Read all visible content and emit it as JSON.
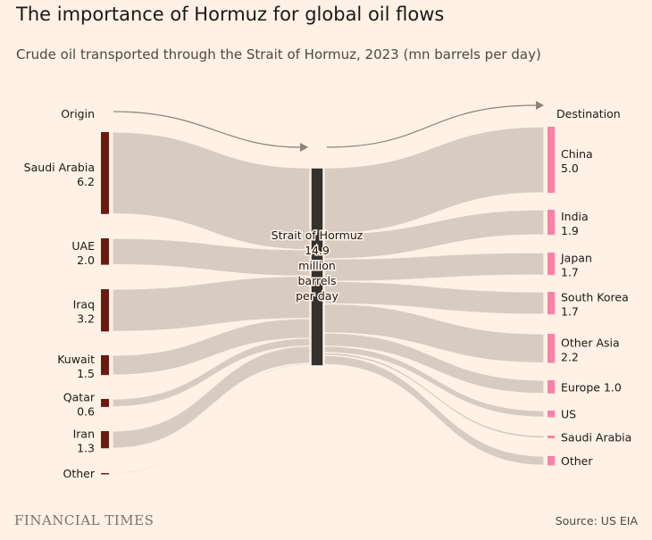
{
  "title": "The importance of Hormuz for global oil flows",
  "subtitle": "Crude oil transported through the Strait of Hormuz, 2023 (mn barrels per day)",
  "brand": "FINANCIAL TIMES",
  "source": "Source: US EIA",
  "chart_data": {
    "type": "sankey",
    "units": "mn barrels per day",
    "origin_label": "Origin",
    "destination_label": "Destination",
    "hub": {
      "name": "Strait of Hormuz",
      "value": 14.9,
      "label_lines": [
        "Strait of Hormuz",
        "14.9",
        "million",
        "barrels",
        "per day"
      ]
    },
    "origins": [
      {
        "name": "Saudi Arabia",
        "value": 6.2,
        "label": "6.2"
      },
      {
        "name": "UAE",
        "value": 2.0,
        "label": "2.0"
      },
      {
        "name": "Iraq",
        "value": 3.2,
        "label": "3.2"
      },
      {
        "name": "Kuwait",
        "value": 1.5,
        "label": "1.5"
      },
      {
        "name": "Qatar",
        "value": 0.6,
        "label": "0.6"
      },
      {
        "name": "Iran",
        "value": 1.3,
        "label": "1.3"
      },
      {
        "name": "Other",
        "value": 0.1,
        "label": ""
      }
    ],
    "destinations": [
      {
        "name": "China",
        "value": 5.0,
        "label": "5.0"
      },
      {
        "name": "India",
        "value": 1.9,
        "label": "1.9"
      },
      {
        "name": "Japan",
        "value": 1.7,
        "label": "1.7"
      },
      {
        "name": "South Korea",
        "value": 1.7,
        "label": "1.7"
      },
      {
        "name": "Other Asia",
        "value": 2.2,
        "label": "2.2"
      },
      {
        "name": "Europe",
        "value": 1.0,
        "label": "1.0",
        "inline": true
      },
      {
        "name": "US",
        "value": 0.5,
        "label": ""
      },
      {
        "name": "Saudi Arabia",
        "value": 0.2,
        "label": ""
      },
      {
        "name": "Other",
        "value": 0.7,
        "label": ""
      }
    ],
    "colors": {
      "origin": "#6b1a10",
      "destination": "#ff7fa8",
      "hub": "#33302e",
      "flow": "#d8ccc2",
      "arrow": "#8f8279"
    }
  }
}
